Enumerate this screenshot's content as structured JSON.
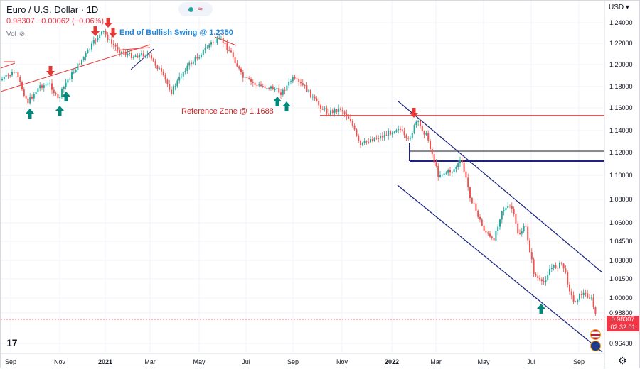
{
  "symbol": {
    "title": "Euro / U.S. Dollar · 1D",
    "price_info": "0.98307  −0.00062 (−0.06%)",
    "vol_label": "Vol"
  },
  "currency_select": "USD ▾",
  "price_axis": [
    "1.24000",
    "1.22000",
    "1.20000",
    "1.18000",
    "1.16000",
    "1.14000",
    "1.12000",
    "1.10000",
    "1.08000",
    "1.06000",
    "1.04500",
    "1.03000",
    "1.01500",
    "1.00000",
    "0.98800",
    "0.96400"
  ],
  "time_axis": [
    "Sep",
    "Nov",
    "2021",
    "Mar",
    "May",
    "Jul",
    "Sep",
    "Nov",
    "2022",
    "Mar",
    "May",
    "Jul",
    "Sep"
  ],
  "last_price_tag": "0.98307",
  "countdown_tag": "02:32:01",
  "annotations": {
    "bullish_swing": "End of Bullish Swing @ 1.2350",
    "reference_zone": "Reference Zone @ 1.1688"
  },
  "colors": {
    "up": "#26a69a",
    "down": "#ef5350",
    "reference_line": "#c62828",
    "channel_line": "#1a237e",
    "bullish_text": "#1e88e5",
    "reference_text": "#c62828"
  },
  "icons": {
    "logo": "tradingview-logo-icon",
    "settings": "gear-icon",
    "hide": "eye-slash-icon"
  }
}
